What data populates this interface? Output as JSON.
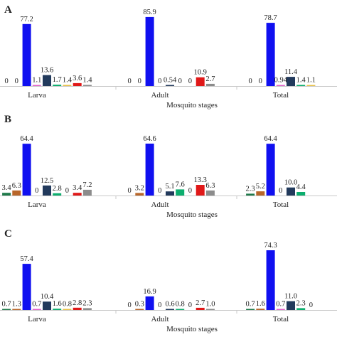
{
  "figure": {
    "panels": [
      "A",
      "B",
      "C"
    ]
  },
  "colors": [
    "#1f7a4a",
    "#b8662a",
    "#1010f0",
    "#e060c8",
    "#223a5c",
    "#0cae6e",
    "#e8c046",
    "#e01818",
    "#8c8c8c"
  ],
  "chart_data": [
    {
      "type": "bar",
      "panel": "A",
      "categories": [
        "Larva",
        "Adult",
        "Total"
      ],
      "xlabel": "Mosquito stages",
      "ylim": [
        0,
        90
      ],
      "grid": false,
      "legend": "none",
      "series": [
        {
          "values": [
            0,
            0,
            0
          ],
          "labels": [
            "0",
            "0",
            "0"
          ]
        },
        {
          "values": [
            0,
            0,
            0
          ],
          "labels": [
            "0",
            "0",
            "0"
          ]
        },
        {
          "values": [
            77.2,
            85.9,
            78.7
          ],
          "labels": [
            "77.2",
            "85.9",
            "78.7"
          ]
        },
        {
          "values": [
            1.1,
            0,
            0.94
          ],
          "labels": [
            "1.1",
            "0",
            "0.94"
          ]
        },
        {
          "values": [
            13.6,
            0.54,
            11.4
          ],
          "labels": [
            "13.6",
            "0.54",
            "11.4"
          ]
        },
        {
          "values": [
            1.7,
            0,
            1.4
          ],
          "labels": [
            "1.7",
            "0",
            "1.4"
          ]
        },
        {
          "values": [
            1.4,
            0,
            1.1
          ],
          "labels": [
            "1.4",
            "0",
            "1.1"
          ]
        },
        {
          "values": [
            3.6,
            10.9,
            null
          ],
          "labels": [
            "3.6",
            "10.9",
            ""
          ]
        },
        {
          "values": [
            1.4,
            2.7,
            null
          ],
          "labels": [
            "1.4",
            "2.7",
            ""
          ]
        }
      ]
    },
    {
      "type": "bar",
      "panel": "B",
      "categories": [
        "Larva",
        "Adult",
        "Total"
      ],
      "xlabel": "Mosquito stages",
      "ylim": [
        0,
        90
      ],
      "grid": false,
      "legend": "none",
      "series": [
        {
          "values": [
            3.4,
            0,
            2.3
          ],
          "labels": [
            "3.4",
            "0",
            "2.3"
          ]
        },
        {
          "values": [
            6.3,
            3.2,
            5.2
          ],
          "labels": [
            "6.3",
            "3.2",
            "5.2"
          ]
        },
        {
          "values": [
            64.4,
            64.6,
            64.4
          ],
          "labels": [
            "64.4",
            "64.6",
            "64.4"
          ]
        },
        {
          "values": [
            0,
            0,
            0
          ],
          "labels": [
            "0",
            "0",
            "0"
          ]
        },
        {
          "values": [
            12.5,
            5.1,
            10.0
          ],
          "labels": [
            "12.5",
            "5.1",
            "10.0"
          ]
        },
        {
          "values": [
            2.8,
            7.6,
            4.4
          ],
          "labels": [
            "2.8",
            "7.6",
            "4.4"
          ]
        },
        {
          "values": [
            0,
            0,
            null
          ],
          "labels": [
            "0",
            "0",
            ""
          ]
        },
        {
          "values": [
            3.4,
            13.3,
            null
          ],
          "labels": [
            "3.4",
            "13.3",
            ""
          ]
        },
        {
          "values": [
            7.2,
            6.3,
            null
          ],
          "labels": [
            "7.2",
            "6.3",
            ""
          ]
        }
      ]
    },
    {
      "type": "bar",
      "panel": "C",
      "categories": [
        "Larva",
        "Adult",
        "Total"
      ],
      "xlabel": "Mosquito stages",
      "ylim": [
        0,
        90
      ],
      "grid": false,
      "legend": "none",
      "series": [
        {
          "values": [
            0.7,
            0,
            0.7
          ],
          "labels": [
            "0.7",
            "0",
            "0.7"
          ]
        },
        {
          "values": [
            1.3,
            0.3,
            1.6
          ],
          "labels": [
            "1.3",
            "0.3",
            "1.6"
          ]
        },
        {
          "values": [
            57.4,
            16.9,
            74.3
          ],
          "labels": [
            "57.4",
            "16.9",
            "74.3"
          ]
        },
        {
          "values": [
            0.7,
            0,
            0.7
          ],
          "labels": [
            "0.7",
            "0",
            "0.7"
          ]
        },
        {
          "values": [
            10.4,
            0.6,
            11.0
          ],
          "labels": [
            "10.4",
            "0.6",
            "11.0"
          ]
        },
        {
          "values": [
            1.6,
            0.8,
            2.3
          ],
          "labels": [
            "1.6",
            "0.8",
            "2.3"
          ]
        },
        {
          "values": [
            0.8,
            0,
            0
          ],
          "labels": [
            "0.8",
            "0",
            "0"
          ]
        },
        {
          "values": [
            2.8,
            2.7,
            null
          ],
          "labels": [
            "2.8",
            "2.7",
            ""
          ]
        },
        {
          "values": [
            2.3,
            1.0,
            null
          ],
          "labels": [
            "2.3",
            "1.0",
            ""
          ]
        }
      ]
    }
  ]
}
